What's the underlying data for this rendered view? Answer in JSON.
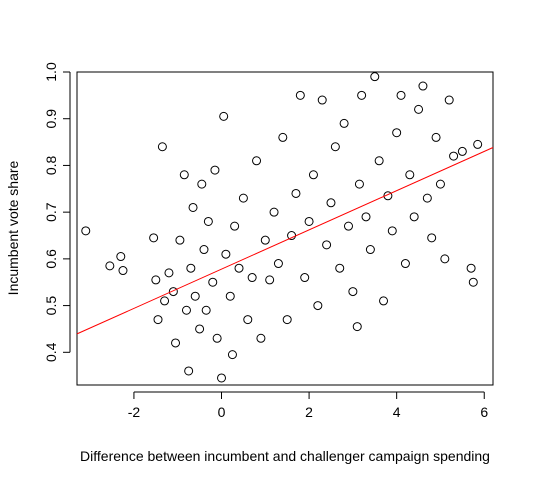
{
  "chart_data": {
    "type": "scatter",
    "title": "",
    "xlabel": "Difference between incumbent and challenger campaign spending",
    "ylabel": "Incumbent vote share",
    "xlim": [
      -3.3,
      6.2
    ],
    "ylim": [
      0.33,
      1.0
    ],
    "xticks": [
      -2,
      0,
      2,
      4,
      6
    ],
    "yticks": [
      0.4,
      0.5,
      0.6,
      0.7,
      0.8,
      0.9,
      1.0
    ],
    "xtick_labels": [
      "-2",
      "0",
      "2",
      "4",
      "6"
    ],
    "ytick_labels": [
      "0.4",
      "0.5",
      "0.6",
      "0.7",
      "0.8",
      "0.9",
      "1.0"
    ],
    "grid": false,
    "legend": "none",
    "marker": "open-circle",
    "point_color": "#000000",
    "fit_color": "#ff0000",
    "fit_line": {
      "intercept": 0.578,
      "slope": 0.042
    },
    "series": [
      {
        "name": "",
        "points": [
          [
            -3.1,
            0.66
          ],
          [
            -2.55,
            0.585
          ],
          [
            -2.3,
            0.605
          ],
          [
            -2.25,
            0.575
          ],
          [
            -1.55,
            0.645
          ],
          [
            -1.5,
            0.555
          ],
          [
            -1.45,
            0.47
          ],
          [
            -1.35,
            0.84
          ],
          [
            -1.3,
            0.51
          ],
          [
            -1.2,
            0.57
          ],
          [
            -1.1,
            0.53
          ],
          [
            -1.05,
            0.42
          ],
          [
            -0.95,
            0.64
          ],
          [
            -0.85,
            0.78
          ],
          [
            -0.8,
            0.49
          ],
          [
            -0.75,
            0.36
          ],
          [
            -0.7,
            0.58
          ],
          [
            -0.65,
            0.71
          ],
          [
            -0.6,
            0.52
          ],
          [
            -0.5,
            0.45
          ],
          [
            -0.45,
            0.76
          ],
          [
            -0.4,
            0.62
          ],
          [
            -0.35,
            0.49
          ],
          [
            -0.3,
            0.68
          ],
          [
            -0.2,
            0.55
          ],
          [
            -0.15,
            0.79
          ],
          [
            -0.1,
            0.43
          ],
          [
            0.0,
            0.345
          ],
          [
            0.05,
            0.905
          ],
          [
            0.1,
            0.61
          ],
          [
            0.2,
            0.52
          ],
          [
            0.25,
            0.395
          ],
          [
            0.3,
            0.67
          ],
          [
            0.4,
            0.58
          ],
          [
            0.5,
            0.73
          ],
          [
            0.6,
            0.47
          ],
          [
            0.7,
            0.56
          ],
          [
            0.8,
            0.81
          ],
          [
            0.9,
            0.43
          ],
          [
            1.0,
            0.64
          ],
          [
            1.1,
            0.555
          ],
          [
            1.2,
            0.7
          ],
          [
            1.3,
            0.59
          ],
          [
            1.4,
            0.86
          ],
          [
            1.5,
            0.47
          ],
          [
            1.6,
            0.65
          ],
          [
            1.7,
            0.74
          ],
          [
            1.8,
            0.95
          ],
          [
            1.9,
            0.56
          ],
          [
            2.0,
            0.68
          ],
          [
            2.1,
            0.78
          ],
          [
            2.2,
            0.5
          ],
          [
            2.3,
            0.94
          ],
          [
            2.4,
            0.63
          ],
          [
            2.5,
            0.72
          ],
          [
            2.6,
            0.84
          ],
          [
            2.7,
            0.58
          ],
          [
            2.8,
            0.89
          ],
          [
            2.9,
            0.67
          ],
          [
            3.0,
            0.53
          ],
          [
            3.1,
            0.455
          ],
          [
            3.15,
            0.76
          ],
          [
            3.2,
            0.95
          ],
          [
            3.3,
            0.69
          ],
          [
            3.4,
            0.62
          ],
          [
            3.5,
            0.99
          ],
          [
            3.6,
            0.81
          ],
          [
            3.7,
            0.51
          ],
          [
            3.8,
            0.735
          ],
          [
            3.9,
            0.66
          ],
          [
            4.0,
            0.87
          ],
          [
            4.1,
            0.95
          ],
          [
            4.2,
            0.59
          ],
          [
            4.3,
            0.78
          ],
          [
            4.4,
            0.69
          ],
          [
            4.5,
            0.92
          ],
          [
            4.6,
            0.97
          ],
          [
            4.7,
            0.73
          ],
          [
            4.8,
            0.645
          ],
          [
            4.9,
            0.86
          ],
          [
            5.0,
            0.76
          ],
          [
            5.1,
            0.6
          ],
          [
            5.2,
            0.94
          ],
          [
            5.3,
            0.82
          ],
          [
            5.5,
            0.83
          ],
          [
            5.7,
            0.58
          ],
          [
            5.75,
            0.55
          ],
          [
            5.85,
            0.845
          ]
        ]
      }
    ]
  }
}
